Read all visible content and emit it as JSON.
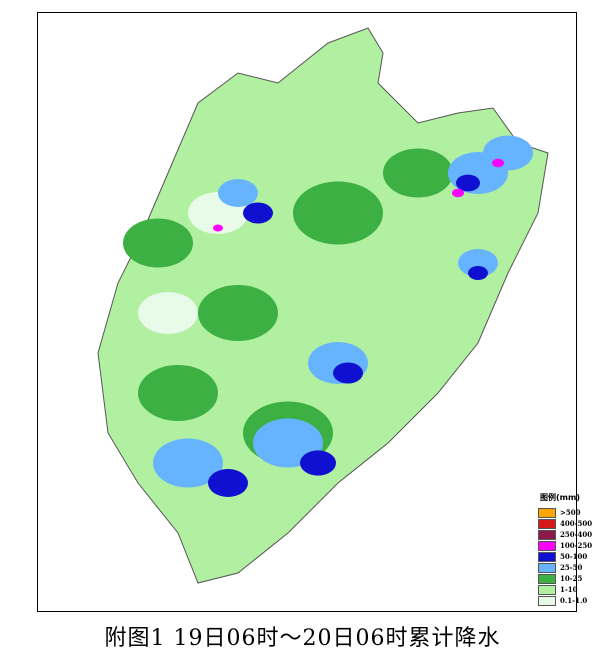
{
  "caption": "附图1 19日06时～20日06时累计降水",
  "legend": {
    "title": "图例(mm)",
    "items": [
      {
        "label": ">500",
        "color": "#ffa500"
      },
      {
        "label": "400-500",
        "color": "#d7191c"
      },
      {
        "label": "250-400",
        "color": "#8b1a4a"
      },
      {
        "label": "100-250",
        "color": "#ff00ff"
      },
      {
        "label": "50-100",
        "color": "#1010d0"
      },
      {
        "label": "25-50",
        "color": "#66b3ff"
      },
      {
        "label": "10-25",
        "color": "#3cb043"
      },
      {
        "label": "1-10",
        "color": "#b0f0a0"
      },
      {
        "label": "0.1-1.0",
        "color": "#e8fbe8"
      }
    ]
  }
}
